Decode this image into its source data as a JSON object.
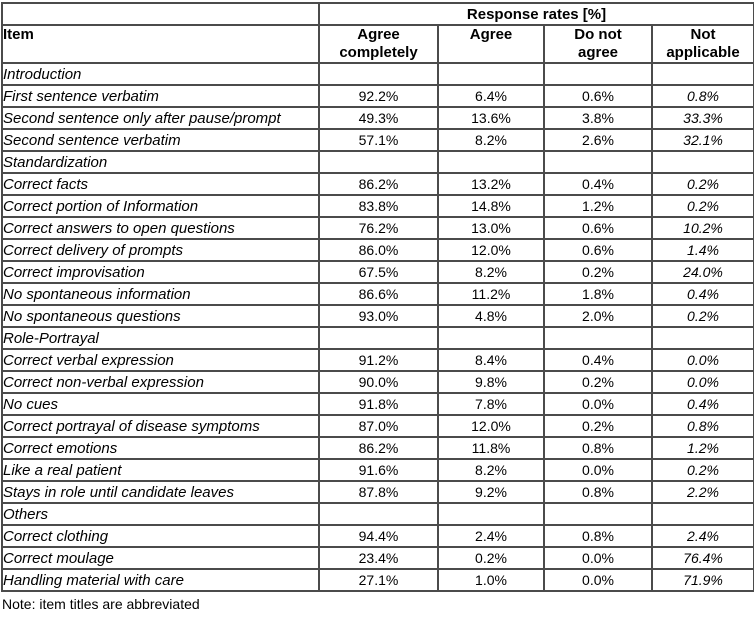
{
  "colors": {
    "border": "#4b4b4b",
    "text": "#000000",
    "background": "#ffffff"
  },
  "table": {
    "top_header": "Response rates [%]",
    "item_header": "Item",
    "columns": [
      "Agree\ncompletely",
      "Agree",
      "Do not\nagree",
      "Not\napplicable"
    ],
    "rows": [
      {
        "type": "section",
        "label": "Introduction",
        "values": [
          "",
          "",
          "",
          ""
        ]
      },
      {
        "type": "item",
        "label": "First sentence verbatim",
        "values": [
          "92.2%",
          "6.4%",
          "0.6%",
          "0.8%"
        ]
      },
      {
        "type": "item",
        "label": "Second sentence only after pause/prompt",
        "values": [
          "49.3%",
          "13.6%",
          "3.8%",
          "33.3%"
        ]
      },
      {
        "type": "item",
        "label": "Second sentence verbatim",
        "values": [
          "57.1%",
          "8.2%",
          "2.6%",
          "32.1%"
        ]
      },
      {
        "type": "section",
        "label": "Standardization",
        "values": [
          "",
          "",
          "",
          ""
        ]
      },
      {
        "type": "item",
        "label": "Correct facts",
        "values": [
          "86.2%",
          "13.2%",
          "0.4%",
          "0.2%"
        ]
      },
      {
        "type": "item",
        "label": "Correct portion of Information",
        "values": [
          "83.8%",
          "14.8%",
          "1.2%",
          "0.2%"
        ]
      },
      {
        "type": "item",
        "label": "Correct answers to open questions",
        "values": [
          "76.2%",
          "13.0%",
          "0.6%",
          "10.2%"
        ]
      },
      {
        "type": "item",
        "label": "Correct delivery of prompts",
        "values": [
          "86.0%",
          "12.0%",
          "0.6%",
          "1.4%"
        ]
      },
      {
        "type": "item",
        "label": "Correct improvisation",
        "values": [
          "67.5%",
          "8.2%",
          "0.2%",
          "24.0%"
        ]
      },
      {
        "type": "item",
        "label": "No spontaneous information",
        "values": [
          "86.6%",
          "11.2%",
          "1.8%",
          "0.4%"
        ]
      },
      {
        "type": "item",
        "label": "No spontaneous questions",
        "values": [
          "93.0%",
          "4.8%",
          "2.0%",
          "0.2%"
        ]
      },
      {
        "type": "section",
        "label": "Role-Portrayal",
        "values": [
          "",
          "",
          "",
          ""
        ]
      },
      {
        "type": "item",
        "label": "Correct verbal expression",
        "values": [
          "91.2%",
          "8.4%",
          "0.4%",
          "0.0%"
        ]
      },
      {
        "type": "item",
        "label": "Correct non-verbal expression",
        "values": [
          "90.0%",
          "9.8%",
          "0.2%",
          "0.0%"
        ]
      },
      {
        "type": "item",
        "label": "No cues",
        "values": [
          "91.8%",
          "7.8%",
          "0.0%",
          "0.4%"
        ]
      },
      {
        "type": "item",
        "label": "Correct portrayal of disease symptoms",
        "values": [
          "87.0%",
          "12.0%",
          "0.2%",
          "0.8%"
        ]
      },
      {
        "type": "item",
        "label": "Correct emotions",
        "values": [
          "86.2%",
          "11.8%",
          "0.8%",
          "1.2%"
        ]
      },
      {
        "type": "item",
        "label": "Like a real patient",
        "values": [
          "91.6%",
          "8.2%",
          "0.0%",
          "0.2%"
        ]
      },
      {
        "type": "item",
        "label": "Stays in role until candidate leaves",
        "values": [
          "87.8%",
          "9.2%",
          "0.8%",
          "2.2%"
        ]
      },
      {
        "type": "section",
        "label": "Others",
        "values": [
          "",
          "",
          "",
          ""
        ]
      },
      {
        "type": "item",
        "label": "Correct clothing",
        "values": [
          "94.4%",
          "2.4%",
          "0.8%",
          "2.4%"
        ]
      },
      {
        "type": "item",
        "label": "Correct moulage",
        "values": [
          "23.4%",
          "0.2%",
          "0.0%",
          "76.4%"
        ]
      },
      {
        "type": "item",
        "label": "Handling material with care",
        "values": [
          "27.1%",
          "1.0%",
          "0.0%",
          "71.9%"
        ]
      }
    ],
    "note": "Note: item titles are abbreviated"
  }
}
